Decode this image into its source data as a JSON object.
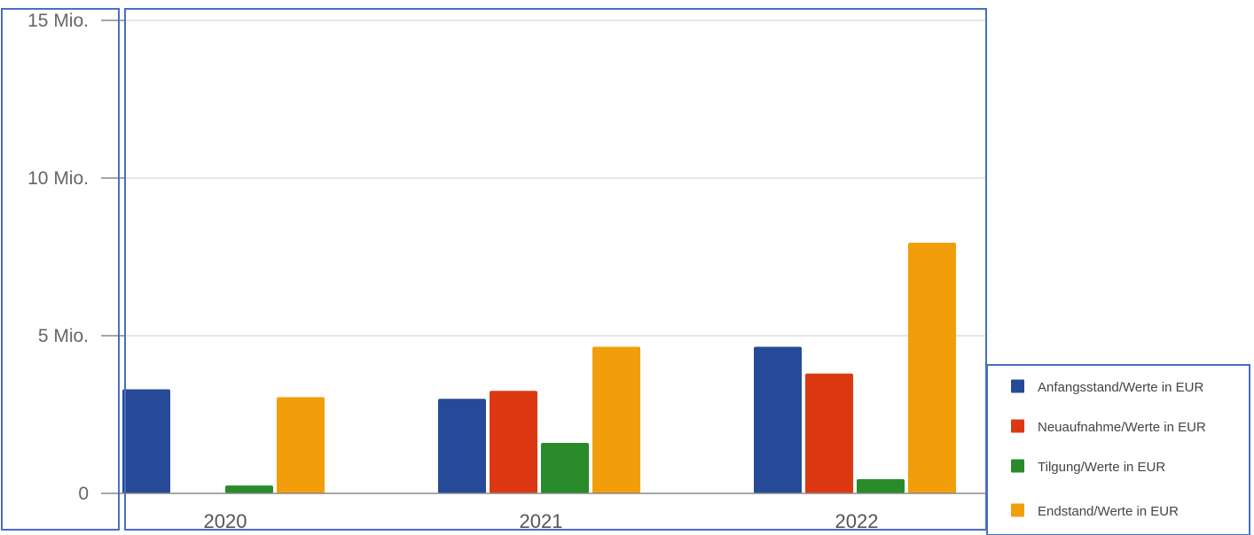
{
  "colors": {
    "frame": "#4a6ec2",
    "grid": "#dedede",
    "axis": "#888888",
    "tick_text": "#666666"
  },
  "chart_data": {
    "type": "bar",
    "title": "",
    "xlabel": "",
    "ylabel": "",
    "categories": [
      "2020",
      "2021",
      "2022"
    ],
    "ylim": [
      0,
      15000000
    ],
    "yticks": [
      {
        "value": 0,
        "label": "0"
      },
      {
        "value": 5000000,
        "label": "5 Mio."
      },
      {
        "value": 10000000,
        "label": "10 Mio."
      },
      {
        "value": 15000000,
        "label": "15 Mio."
      }
    ],
    "grid": true,
    "legend_position": "bottom-right",
    "series": [
      {
        "name": "Anfangsstand/Werte in EUR",
        "color": "#264a97",
        "values": [
          3300000,
          3000000,
          4650000
        ]
      },
      {
        "name": "Neuaufnahme/Werte in EUR",
        "color": "#dc3912",
        "values": [
          0,
          3250000,
          3800000
        ]
      },
      {
        "name": "Tilgung/Werte in EUR",
        "color": "#2a8b2a",
        "values": [
          250000,
          1600000,
          450000
        ]
      },
      {
        "name": "Endstand/Werte in EUR",
        "color": "#f29e0a",
        "values": [
          3050000,
          4650000,
          7950000
        ]
      }
    ]
  }
}
